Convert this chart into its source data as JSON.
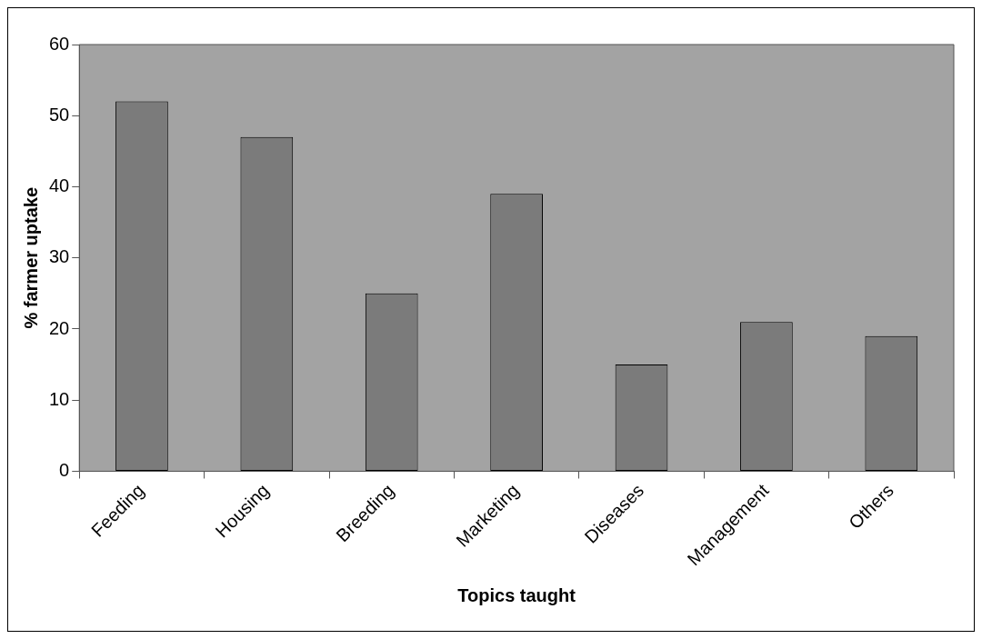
{
  "chart_data": {
    "type": "bar",
    "xlabel": "Topics taught",
    "ylabel": "% farmer uptake",
    "categories": [
      "Feeding",
      "Housing",
      "Breeding",
      "Marketing",
      "Diseases",
      "Management",
      "Others"
    ],
    "values": [
      52,
      47,
      25,
      39,
      15,
      21,
      19
    ],
    "color": "#7b7b7b",
    "ylim": [
      0,
      60
    ],
    "yticks": [
      0,
      10,
      20,
      30,
      40,
      50,
      60
    ],
    "grid": false,
    "legend": false
  }
}
